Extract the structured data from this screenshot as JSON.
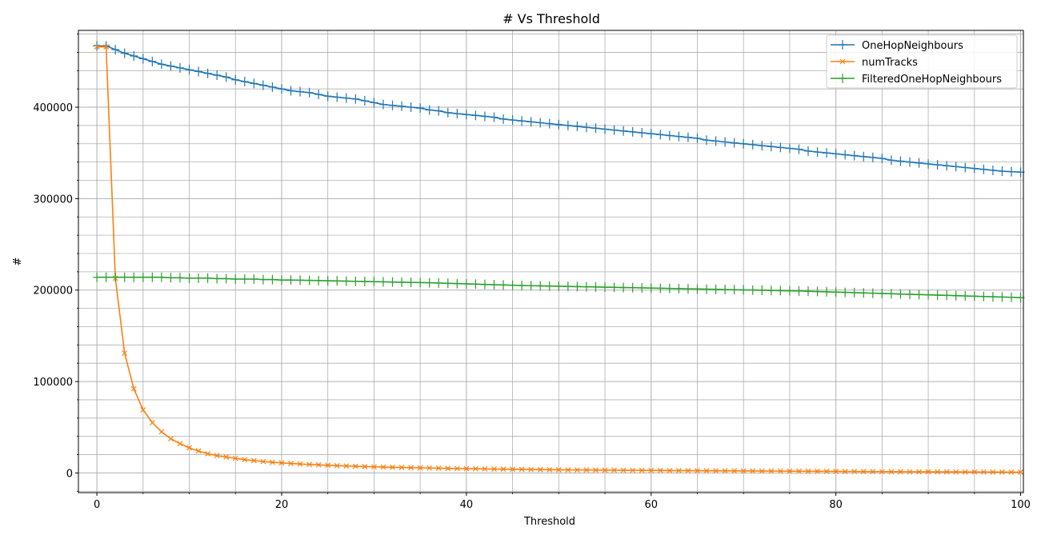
{
  "chart_data": {
    "type": "line",
    "title": "# Vs Threshold",
    "xlabel": "Threshold",
    "ylabel": "#",
    "xlim": [
      -2,
      100.3
    ],
    "ylim": [
      -21500,
      484000
    ],
    "xticks": [
      0,
      20,
      40,
      60,
      80,
      100
    ],
    "yticks": [
      0,
      100000,
      200000,
      300000,
      400000
    ],
    "grid": "major and minor",
    "legend": "top-right",
    "series": [
      {
        "name": "OneHopNeighbours",
        "color": "#1f77b4",
        "marker": "+",
        "x": [
          0,
          1,
          2,
          3,
          4,
          5,
          6,
          7,
          8,
          9,
          10,
          11,
          12,
          13,
          14,
          15,
          16,
          17,
          18,
          19,
          20,
          21,
          22,
          23,
          24,
          25,
          26,
          27,
          28,
          29,
          30,
          31,
          32,
          33,
          34,
          35,
          36,
          37,
          38,
          39,
          40,
          41,
          42,
          43,
          44,
          45,
          46,
          47,
          48,
          49,
          50,
          51,
          52,
          53,
          54,
          55,
          56,
          57,
          58,
          59,
          60,
          61,
          62,
          63,
          64,
          65,
          66,
          67,
          68,
          69,
          70,
          71,
          72,
          73,
          74,
          75,
          76,
          77,
          78,
          79,
          80,
          81,
          82,
          83,
          84,
          85,
          86,
          87,
          88,
          89,
          90,
          91,
          92,
          93,
          94,
          95,
          96,
          97,
          98,
          99,
          100
        ],
        "values": [
          467000,
          467000,
          463000,
          459000,
          456000,
          453000,
          450000,
          447000,
          445000,
          443000,
          441000,
          439000,
          437000,
          435000,
          433000,
          430000,
          428000,
          426000,
          424000,
          422000,
          420000,
          418000,
          417000,
          416000,
          414000,
          412000,
          411000,
          410000,
          409000,
          407000,
          405000,
          403000,
          402000,
          401000,
          400000,
          399000,
          397000,
          396000,
          394000,
          393000,
          392000,
          391000,
          390000,
          389000,
          387000,
          386000,
          385000,
          384000,
          383000,
          382000,
          381000,
          380000,
          379000,
          378000,
          377000,
          376000,
          375000,
          374000,
          373000,
          372000,
          371000,
          370000,
          369000,
          368000,
          367000,
          366000,
          364000,
          363000,
          362000,
          361000,
          360000,
          359000,
          358000,
          357000,
          356000,
          355000,
          354000,
          352000,
          351000,
          350000,
          349000,
          348000,
          347000,
          346000,
          345000,
          344000,
          342000,
          341000,
          340000,
          339000,
          338000,
          337000,
          336000,
          335000,
          334000,
          333000,
          332000,
          331000,
          330000,
          329500,
          329000
        ]
      },
      {
        "name": "numTracks",
        "color": "#ff7f0e",
        "marker": "x",
        "x": [
          0,
          1,
          2,
          3,
          4,
          5,
          6,
          7,
          8,
          9,
          10,
          11,
          12,
          13,
          14,
          15,
          16,
          17,
          18,
          19,
          20,
          21,
          22,
          23,
          24,
          25,
          26,
          27,
          28,
          29,
          30,
          31,
          32,
          33,
          34,
          35,
          36,
          37,
          38,
          39,
          40,
          41,
          42,
          43,
          44,
          45,
          46,
          47,
          48,
          49,
          50,
          51,
          52,
          53,
          54,
          55,
          56,
          57,
          58,
          59,
          60,
          61,
          62,
          63,
          64,
          65,
          66,
          67,
          68,
          69,
          70,
          71,
          72,
          73,
          74,
          75,
          76,
          77,
          78,
          79,
          80,
          81,
          82,
          83,
          84,
          85,
          86,
          87,
          88,
          89,
          90,
          91,
          92,
          93,
          94,
          95,
          96,
          97,
          98,
          99,
          100
        ],
        "values": [
          466000,
          466000,
          213000,
          131000,
          92000,
          69000,
          55000,
          45000,
          37500,
          32000,
          27500,
          24000,
          21000,
          19000,
          17500,
          16000,
          14500,
          13500,
          12500,
          11700,
          11000,
          10400,
          9800,
          9300,
          8800,
          8400,
          8000,
          7600,
          7300,
          7000,
          6700,
          6400,
          6200,
          6000,
          5800,
          5600,
          5400,
          5200,
          5000,
          4850,
          4700,
          4550,
          4400,
          4250,
          4100,
          4000,
          3900,
          3800,
          3700,
          3600,
          3500,
          3400,
          3320,
          3240,
          3160,
          3080,
          3000,
          2940,
          2880,
          2820,
          2760,
          2700,
          2640,
          2580,
          2520,
          2460,
          2400,
          2350,
          2300,
          2250,
          2200,
          2150,
          2100,
          2050,
          2000,
          1950,
          1900,
          1850,
          1800,
          1750,
          1700,
          1650,
          1600,
          1550,
          1500,
          1460,
          1420,
          1380,
          1340,
          1300,
          1260,
          1220,
          1180,
          1140,
          1100,
          1060,
          1020,
          980,
          940,
          900,
          860
        ]
      },
      {
        "name": "FilteredOneHopNeighbours",
        "color": "#2ca02c",
        "marker": "+",
        "x": [
          0,
          1,
          2,
          3,
          4,
          5,
          6,
          7,
          8,
          9,
          10,
          11,
          12,
          13,
          14,
          15,
          16,
          17,
          18,
          19,
          20,
          21,
          22,
          23,
          24,
          25,
          26,
          27,
          28,
          29,
          30,
          31,
          32,
          33,
          34,
          35,
          36,
          37,
          38,
          39,
          40,
          41,
          42,
          43,
          44,
          45,
          46,
          47,
          48,
          49,
          50,
          51,
          52,
          53,
          54,
          55,
          56,
          57,
          58,
          59,
          60,
          61,
          62,
          63,
          64,
          65,
          66,
          67,
          68,
          69,
          70,
          71,
          72,
          73,
          74,
          75,
          76,
          77,
          78,
          79,
          80,
          81,
          82,
          83,
          84,
          85,
          86,
          87,
          88,
          89,
          90,
          91,
          92,
          93,
          94,
          95,
          96,
          97,
          98,
          99,
          100
        ],
        "values": [
          214000,
          214000,
          214000,
          214000,
          214000,
          214000,
          214000,
          214000,
          213500,
          213500,
          213000,
          213000,
          213000,
          212500,
          212500,
          212000,
          212000,
          212000,
          211500,
          211500,
          211000,
          211000,
          210800,
          210600,
          210400,
          210200,
          210000,
          209800,
          209600,
          209400,
          209200,
          209000,
          208800,
          208600,
          208400,
          208200,
          208000,
          207700,
          207400,
          207100,
          206800,
          206500,
          206200,
          205900,
          205600,
          205300,
          205000,
          204800,
          204600,
          204400,
          204200,
          204000,
          203800,
          203600,
          203400,
          203200,
          203000,
          202800,
          202600,
          202400,
          202200,
          202000,
          201800,
          201600,
          201400,
          201200,
          201000,
          200800,
          200600,
          200400,
          200200,
          200000,
          199800,
          199600,
          199400,
          199200,
          199000,
          198700,
          198400,
          198100,
          197800,
          197500,
          197200,
          196900,
          196600,
          196300,
          196000,
          195700,
          195400,
          195100,
          194800,
          194500,
          194200,
          193900,
          193600,
          193300,
          193000,
          192700,
          192400,
          192100,
          191800
        ]
      }
    ]
  }
}
